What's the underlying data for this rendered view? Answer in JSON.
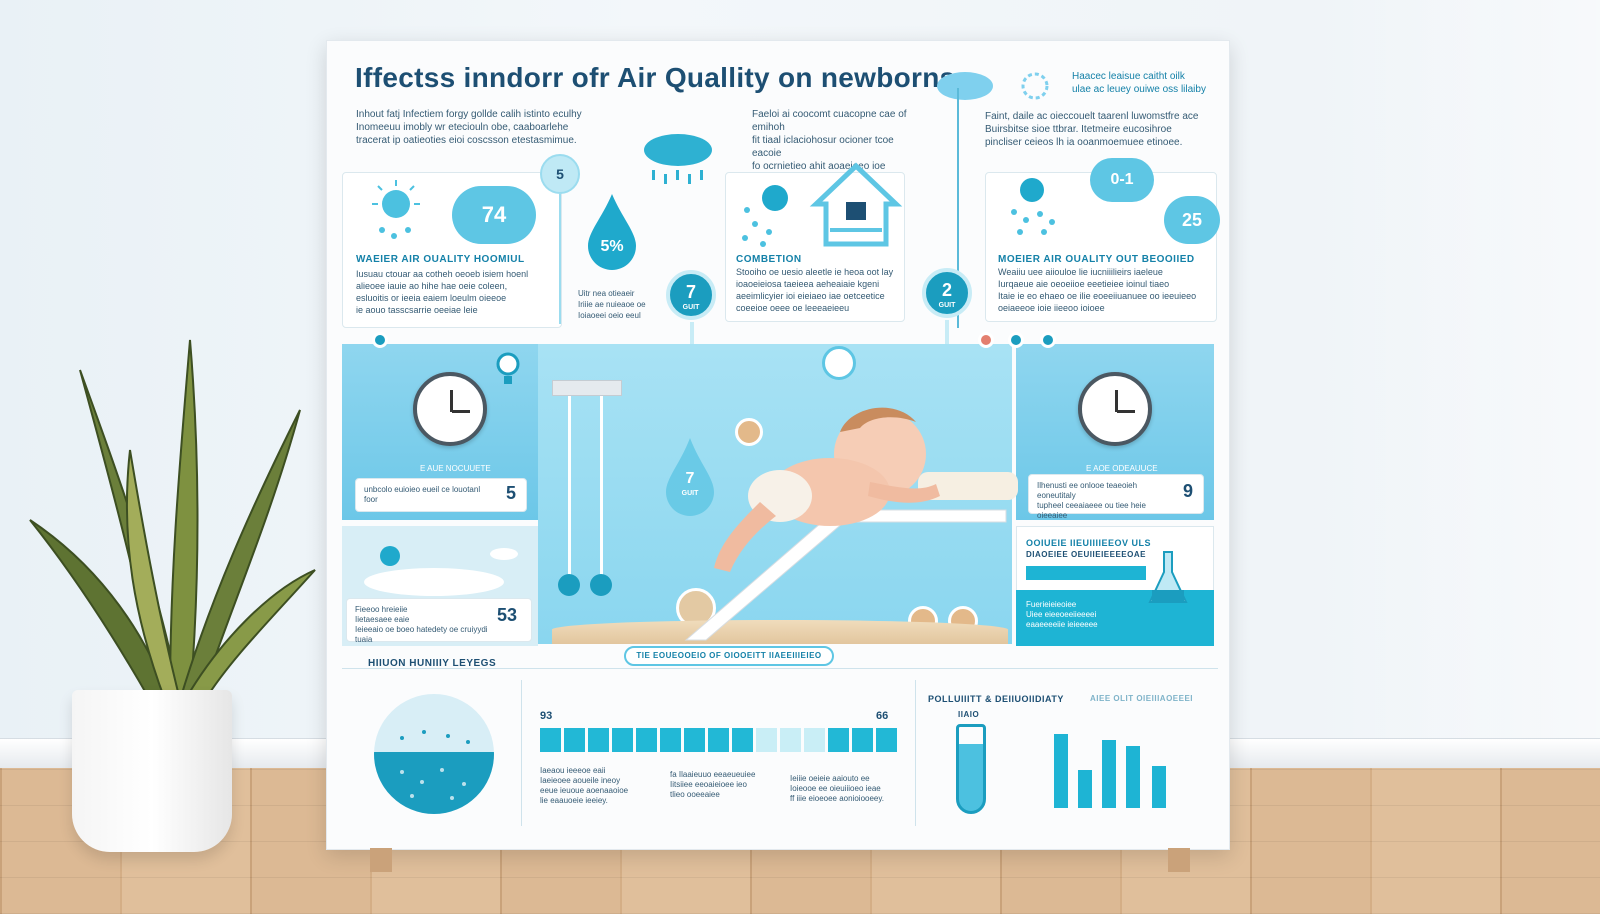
{
  "title": "Iffectss inndorr ofr Air Quallity on newborns",
  "intro_left": [
    "Inhout fatj Infectiem forgy gollde calih istinto eculhy",
    "Inomeeuu imobly wr eteciouln obe, caaboarlehe",
    "tracerat ip oatieoties eioi coscsson etestasmimue."
  ],
  "intro_mid": [
    "Faeloi ai coocomt cuacopne cae of emihoh",
    "fit tiaal iclaciohosur ocioner tcoe eacoie",
    "fo ocrnietieo ahit aoaeieeo ioe aoeeeoeis."
  ],
  "intro_right": [
    "Faint, daile ac oieccouelt taarenl luwomstfre ace",
    "Buirsbitse sioe ttbrar. Itetmeire eucosihroe",
    "pincliser ceieos lh ia ooanmoemuee etinoee."
  ],
  "top_right_note": [
    "Haacec leaisue caitht oilk",
    "ulae ac leuey ouiwe oss lilaiby"
  ],
  "left_panel": {
    "badge": "74",
    "heading": "WAEIER AIR OUALITY HOOMIUL",
    "lines": [
      "Iusuau ctouar aa cotheh oeoeb isiem hoenl",
      "alieoee iauie ao hihe hae oeie coleen,",
      "esluoitis or ieeia eaiem loeulm oieeoe",
      "ie aouo tasscsarrie oeeiae leie"
    ]
  },
  "drop_pct": "5%",
  "stem_num": "5",
  "pin_mid": {
    "value": "7",
    "unit": "GUIT"
  },
  "mid_note": [
    "Uitr nea otieaeir",
    "Iriiie ae nuieaoe oe",
    "Ioiaoeei oeio eeul"
  ],
  "combustion": {
    "heading": "COMBETION",
    "lines": [
      "Stooiho oe uesio aleetle ie heoa oot lay",
      "ioaoeieiosa taeieea aeheaiaie kgeni",
      "aeeimlicyier ioi eieiaeo iae oetceetice",
      "coeeioe oeee oe leeeaeieeu"
    ]
  },
  "pin_right": {
    "value": "2",
    "unit": "GUIT"
  },
  "right_panel": {
    "badge_a": "0-1",
    "badge_b": "25",
    "heading": "MOEIER AIR OUALITY OUT BEOOIIED",
    "lines": [
      "Weaiiu uee aiiouloe lie iucniiilieirs iaeleue",
      "Iurqaeue aie oeoeiioe eeetieiee ioinul tiaeo",
      "Itaie ie eo ehaeo oe ilie eoeeiiuanuee oo ieeuieeo",
      "oeiaeeoe ioie iieeoo ioioee"
    ]
  },
  "left_clock_label": "E AUE NOCUUETE",
  "left_value_box": {
    "text": "unbcolo euioieo eueil ce louotanl foor",
    "number": "5"
  },
  "drop_mid": {
    "value": "7",
    "unit": "GUIT"
  },
  "right_clock_label": "E AOE ODEAUUCE",
  "right_value_box": {
    "lines": [
      "Ilhenusti ee onlooe teaeoieh eoneutitaly",
      "tupheel ceeaiaeee ou tiee heie oieeaiee"
    ],
    "number": "9"
  },
  "sky_box": {
    "lines": [
      "Fieeoo hreieiie",
      "Iietaesaee eaie",
      "Ieieeaio oe boeo hatedety oe cruiyydi tuaia"
    ],
    "number": "53"
  },
  "right_lower": {
    "heading": "OOIUEIE IIEUIIIIEEOV ULS",
    "sub": "DIAOEIEE OEUIIEIEEEEOAE",
    "lines": [
      "Fuerieieieoiee",
      "Uiee eieeoeeiieeeei",
      "eaaeeeeiie ieieeeee"
    ]
  },
  "ribbon": "TIE EOUEOOEIO OF OIOOEITT IIAEEIIIEIEO",
  "section_humidity": "HIIUON HUNIIIY LEYEGS",
  "bars_left_num": "93",
  "bars_right_num": "66",
  "mid_lower_cols": [
    [
      "Iaeaou ieeeoe eaii",
      "Iaeieoee aoueile ineoy",
      "eeue ieuoue aoenaaoioe",
      "lie eaauoeie ieeiey."
    ],
    [
      "fa Ilaaieuuo eeaeueuiee",
      "Iitsiiee eeoaieioee ieo",
      "tlieo ooeeaiee"
    ],
    [
      "Ieiiie oeieie aaiouto ee",
      "Ioieooe ee oieuiiioeo ieae",
      "ff iiie eioeoee aonioiooeey."
    ]
  ],
  "pollutants": {
    "heading": "POLLUIIITT & DEIIUOIIDIATY",
    "sub": "AIEE OLIT OIEIIIAOEEEI",
    "tube_label": "IIAIO"
  },
  "colors": {
    "accent": "#1b9dbf",
    "sky": "#7fd0ee",
    "navy": "#1d4f73",
    "board": "#fbfcfd"
  }
}
